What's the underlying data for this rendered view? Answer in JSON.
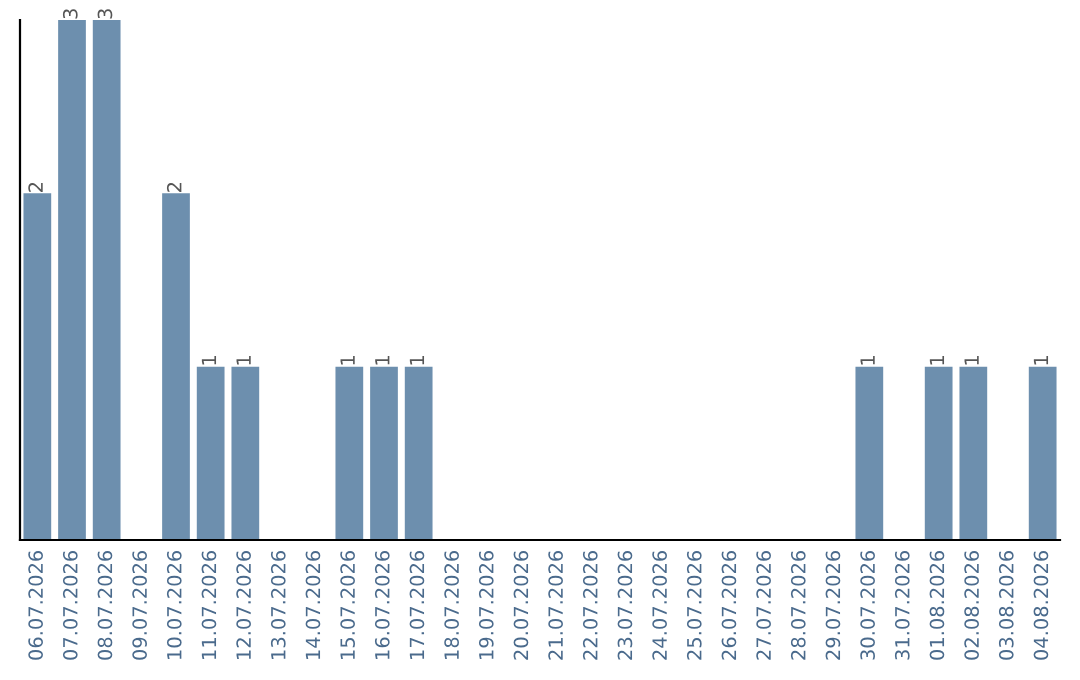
{
  "chart_data": {
    "type": "bar",
    "categories": [
      "06.07.2026",
      "07.07.2026",
      "08.07.2026",
      "09.07.2026",
      "10.07.2026",
      "11.07.2026",
      "12.07.2026",
      "13.07.2026",
      "14.07.2026",
      "15.07.2026",
      "16.07.2026",
      "17.07.2026",
      "18.07.2026",
      "19.07.2026",
      "20.07.2026",
      "21.07.2026",
      "22.07.2026",
      "23.07.2026",
      "24.07.2026",
      "25.07.2026",
      "26.07.2026",
      "27.07.2026",
      "28.07.2026",
      "29.07.2026",
      "30.07.2026",
      "31.07.2026",
      "01.08.2026",
      "02.08.2026",
      "03.08.2026",
      "04.08.2026"
    ],
    "values": [
      2,
      3,
      3,
      0,
      2,
      1,
      1,
      0,
      0,
      1,
      1,
      1,
      0,
      0,
      0,
      0,
      0,
      0,
      0,
      0,
      0,
      0,
      0,
      0,
      1,
      0,
      1,
      1,
      0,
      1
    ],
    "value_labels": [
      "2",
      "3",
      "3",
      null,
      "2",
      "1",
      "1",
      null,
      null,
      "1",
      "1",
      "1",
      null,
      null,
      null,
      null,
      null,
      null,
      null,
      null,
      null,
      null,
      null,
      null,
      "1",
      null,
      "1",
      "1",
      null,
      "1"
    ],
    "color": "#6d8fae",
    "ylim": [
      0,
      3
    ],
    "tick_labels": "x",
    "grid": false,
    "legend": false
  }
}
